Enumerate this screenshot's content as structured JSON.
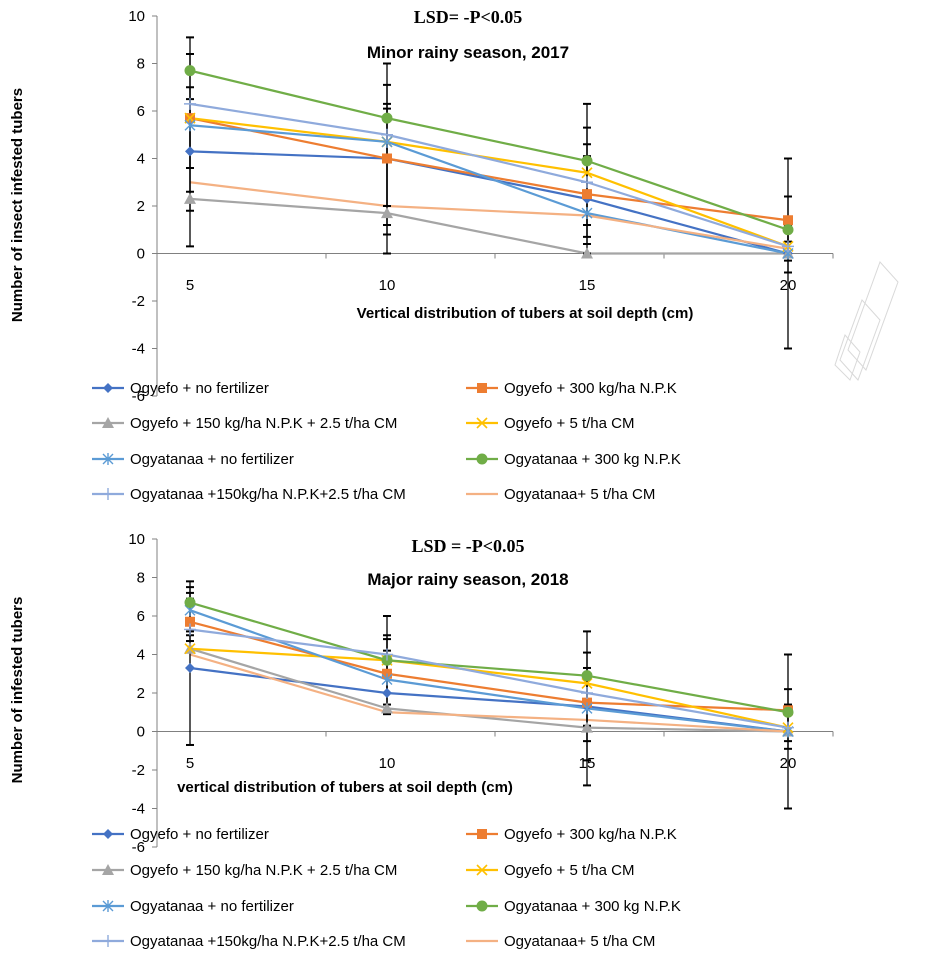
{
  "colors": {
    "axis": "#808080",
    "error_bar": "#000000",
    "watermark": "#d9d9d9"
  },
  "chart_data": [
    {
      "type": "line",
      "title": "LSD= -P<0.05",
      "subtitle": "Minor rainy season, 2017",
      "xlabel": "Vertical distribution of tubers at soil depth (cm)",
      "ylabel": "Number of insect infested tubers",
      "x": [
        5,
        10,
        15,
        20
      ],
      "x_tick_labels": [
        "5",
        "10",
        "15",
        "20"
      ],
      "ylim": [
        -6,
        10
      ],
      "y_ticks": [
        -6,
        -4,
        -2,
        0,
        2,
        4,
        6,
        8,
        10
      ],
      "y_tick_labels": [
        "-6",
        "-4",
        "-2",
        "0",
        "2",
        "4",
        "6",
        "8",
        "10"
      ],
      "grid": false,
      "legend_position": "bottom",
      "series": [
        {
          "name": "Ogyefo + no fertilizer",
          "color": "#4472c4",
          "marker": "diamond",
          "values": [
            4.3,
            4.0,
            2.3,
            0.0
          ]
        },
        {
          "name": "Ogyefo + 300 kg/ha   N.P.K",
          "color": "#ed7d31",
          "marker": "square",
          "values": [
            5.7,
            4.0,
            2.5,
            1.4
          ]
        },
        {
          "name": "Ogyefo + 150 kg/ha N.P.K + 2.5 t/ha CM",
          "color": "#a5a5a5",
          "marker": "triangle",
          "values": [
            2.3,
            1.7,
            0.0,
            0.0
          ]
        },
        {
          "name": "Ogyefo + 5 t/ha CM",
          "color": "#ffc000",
          "marker": "x",
          "values": [
            5.7,
            4.7,
            3.4,
            0.3
          ]
        },
        {
          "name": "Ogyatanaa + no fertilizer",
          "color": "#5b9bd5",
          "marker": "star",
          "values": [
            5.4,
            4.7,
            1.7,
            0.0
          ]
        },
        {
          "name": "Ogyatanaa + 300 kg   N.P.K",
          "color": "#70ad47",
          "marker": "circle",
          "values": [
            7.7,
            5.7,
            3.9,
            1.0
          ]
        },
        {
          "name": "Ogyatanaa +150kg/ha N.P.K+2.5 t/ha CM",
          "color": "#8faadc",
          "marker": "plus",
          "values": [
            6.3,
            5.0,
            3.0,
            0.3
          ]
        },
        {
          "name": "Ogyatanaa+ 5 t/ha CM",
          "color": "#f4b183",
          "marker": "none",
          "values": [
            3.0,
            2.0,
            1.6,
            0.2
          ]
        }
      ],
      "error_bars": [
        {
          "x": 5,
          "upper": [
            9.1,
            8.4,
            7.0,
            6.5
          ],
          "lower": [
            0.3,
            1.8,
            2.6,
            3.6
          ]
        },
        {
          "x": 10,
          "upper": [
            8.0,
            7.1,
            6.3,
            6.1
          ],
          "lower": [
            0.0,
            0.8,
            1.2,
            2.0
          ]
        },
        {
          "x": 15,
          "upper": [
            6.3,
            5.3,
            4.6,
            4.1
          ],
          "lower": [
            0.0,
            0.4,
            0.7,
            1.2
          ]
        },
        {
          "x": 20,
          "upper": [
            4.0,
            2.4,
            1.2,
            0.9
          ],
          "lower": [
            -4.0,
            -0.8,
            -0.3,
            0.5
          ]
        }
      ]
    },
    {
      "type": "line",
      "title": "LSD = -P<0.05",
      "subtitle": "Major rainy  season, 2018",
      "xlabel": "vertical distribution of tubers at soil depth (cm)",
      "ylabel": "Number of infested tubers",
      "x": [
        5,
        10,
        15,
        20
      ],
      "x_tick_labels": [
        "5",
        "10",
        "15",
        "20"
      ],
      "ylim": [
        -6,
        10
      ],
      "y_ticks": [
        -6,
        -4,
        -2,
        0,
        2,
        4,
        6,
        8,
        10
      ],
      "y_tick_labels": [
        "-6",
        "-4",
        "-2",
        "0",
        "2",
        "4",
        "6",
        "8",
        "10"
      ],
      "grid": false,
      "legend_position": "bottom",
      "series": [
        {
          "name": "Ogyefo + no fertilizer",
          "color": "#4472c4",
          "marker": "diamond",
          "values": [
            3.3,
            2.0,
            1.3,
            0.0
          ]
        },
        {
          "name": "Ogyefo + 300 kg/ha   N.P.K",
          "color": "#ed7d31",
          "marker": "square",
          "values": [
            5.7,
            3.0,
            1.5,
            1.1
          ]
        },
        {
          "name": "Ogyefo + 150 kg/ha N.P.K + 2.5 t/ha CM",
          "color": "#a5a5a5",
          "marker": "triangle",
          "values": [
            4.3,
            1.2,
            0.2,
            0.0
          ]
        },
        {
          "name": "Ogyefo + 5 t/ha CM",
          "color": "#ffc000",
          "marker": "x",
          "values": [
            4.3,
            3.7,
            2.5,
            0.2
          ]
        },
        {
          "name": "Ogyatanaa + no fertilizer",
          "color": "#5b9bd5",
          "marker": "star",
          "values": [
            6.3,
            2.7,
            1.2,
            0.0
          ]
        },
        {
          "name": "Ogyatanaa + 300 kg   N.P.K",
          "color": "#70ad47",
          "marker": "circle",
          "values": [
            6.7,
            3.7,
            2.9,
            1.0
          ]
        },
        {
          "name": "Ogyatanaa +150kg/ha N.P.K+2.5 t/ha CM",
          "color": "#8faadc",
          "marker": "plus",
          "values": [
            5.3,
            4.0,
            2.0,
            0.2
          ]
        },
        {
          "name": "Ogyatanaa+ 5 t/ha CM",
          "color": "#f4b183",
          "marker": "none",
          "values": [
            4.0,
            1.0,
            0.6,
            0.0
          ]
        }
      ],
      "error_bars": [
        {
          "x": 5,
          "upper": [
            7.8,
            7.5,
            7.2,
            6.9
          ],
          "lower": [
            -0.7,
            4.7,
            5.0,
            5.2
          ]
        },
        {
          "x": 10,
          "upper": [
            6.0,
            5.0,
            4.8,
            4.2
          ],
          "lower": [
            0.9,
            1.1,
            1.4,
            2.0
          ]
        },
        {
          "x": 15,
          "upper": [
            5.2,
            4.1,
            3.3,
            2.9
          ],
          "lower": [
            -2.8,
            -1.5,
            -0.5,
            0.3
          ]
        },
        {
          "x": 20,
          "upper": [
            4.0,
            2.2,
            1.4,
            1.2
          ],
          "lower": [
            -4.0,
            -0.9,
            -0.5,
            0.0
          ]
        }
      ]
    }
  ]
}
